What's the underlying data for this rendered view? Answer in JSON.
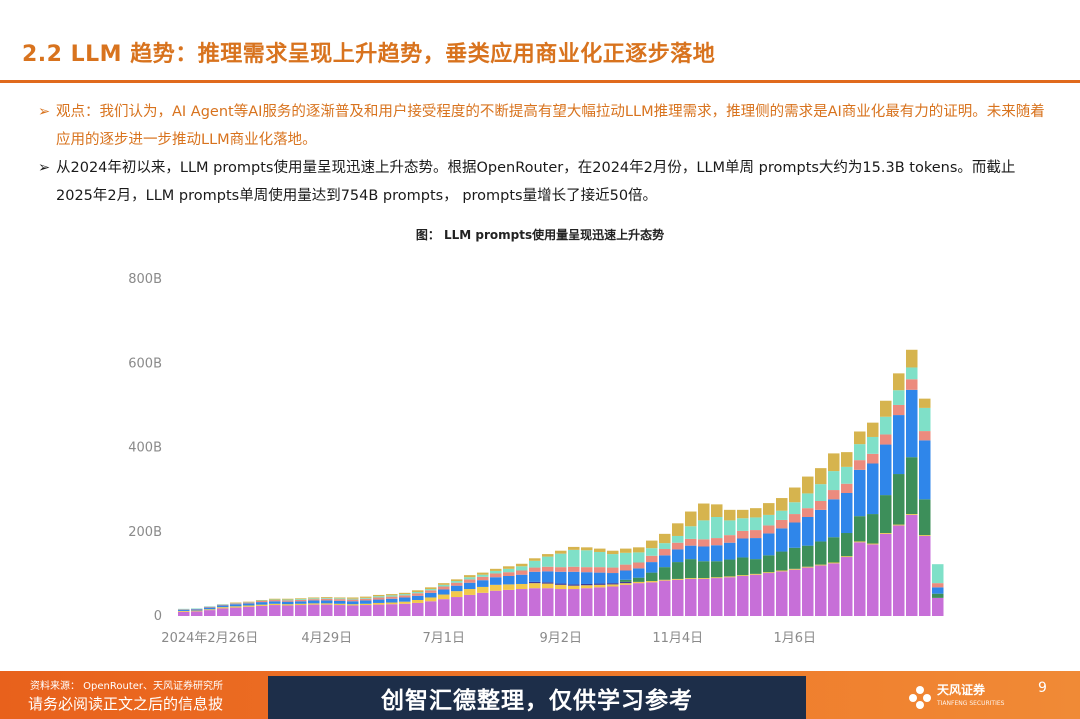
{
  "slide": {
    "title": "2.2 LLM 趋势：推理需求呈现上升趋势，垂类应用商业化正逐步落地",
    "bullets": [
      {
        "marker": "➢",
        "text": "观点：我们认为，AI Agent等AI服务的逐渐普及和用户接受程度的不断提高有望大幅拉动LLM推理需求，推理侧的需求是AI商业化最有力的证明。未来随着应用的逐步进一步推动LLM商业化落地。"
      },
      {
        "marker": "➢",
        "text": "从2024年初以来，LLM prompts使用量呈现迅速上升态势。根据OpenRouter，在2024年2月份，LLM单周 prompts大约为15.3B tokens。而截止2025年2月，LLM prompts单周使用量达到754B prompts， prompts量增长了接近50倍。"
      }
    ],
    "figure_caption": "图： LLM prompts使用量呈现迅速上升态势",
    "source": "资料来源： OpenRouter、天风证券研究所",
    "disclaimer": "请务必阅读正文之后的信息披",
    "watermark": "创智汇德整理，仅供学习参考",
    "logo_text": "天风证券",
    "logo_sub": "TIANFENG SECURITIES",
    "page_number": "9",
    "colors": {
      "accent": "#e06a1c",
      "title": "#d8731e",
      "watermark_bg": "#1d2e49"
    }
  },
  "chart_data": {
    "type": "bar",
    "stacked": true,
    "title": "",
    "xlabel": "",
    "ylabel": "",
    "ylim": [
      0,
      800
    ],
    "y_ticks": [
      "0",
      "200B",
      "400B",
      "600B",
      "800B"
    ],
    "y_tick_values": [
      0,
      200,
      400,
      600,
      800
    ],
    "x_tick_labels": [
      {
        "label": "2024年2月26日",
        "index": 2
      },
      {
        "label": "4月29日",
        "index": 11
      },
      {
        "label": "7月1日",
        "index": 20
      },
      {
        "label": "9月2日",
        "index": 29
      },
      {
        "label": "11月4日",
        "index": 38
      },
      {
        "label": "1月6日",
        "index": 47
      }
    ],
    "grid": false,
    "legend": "none",
    "series": [
      {
        "color": "#c76fd8",
        "values": [
          10,
          11,
          14,
          18,
          20,
          22,
          24,
          26,
          25,
          26,
          27,
          27,
          26,
          25,
          26,
          27,
          28,
          29,
          31,
          35,
          40,
          45,
          50,
          55,
          60,
          62,
          64,
          66,
          66,
          64,
          64,
          66,
          68,
          70,
          74,
          78,
          80,
          84,
          86,
          88,
          88,
          90,
          92,
          95,
          98,
          102,
          106,
          110,
          115,
          120,
          125,
          140,
          175,
          170,
          195,
          215,
          240,
          190,
          43
        ]
      },
      {
        "color": "#f2c94c",
        "values": [
          2,
          2,
          2,
          3,
          3,
          3,
          3,
          3,
          3,
          3,
          3,
          3,
          3,
          3,
          3,
          4,
          4,
          5,
          7,
          9,
          11,
          14,
          14,
          14,
          14,
          13,
          12,
          12,
          11,
          10,
          8,
          7,
          6,
          5,
          4,
          3,
          3,
          2,
          2,
          2,
          2,
          2,
          2,
          2,
          2,
          2,
          2,
          2,
          2,
          2,
          2,
          2,
          2,
          2,
          2,
          2,
          2,
          2,
          0
        ]
      },
      {
        "color": "#3d3a9a",
        "values": [
          0,
          0,
          0,
          0,
          0,
          0,
          0,
          0,
          0,
          0,
          0,
          0,
          0,
          0,
          0,
          0,
          0,
          0,
          0,
          0,
          0,
          0,
          0,
          0,
          0,
          0,
          0,
          3,
          3,
          3,
          3,
          3,
          3,
          3,
          3,
          0,
          0,
          0,
          0,
          0,
          0,
          0,
          0,
          0,
          0,
          0,
          0,
          0,
          0,
          0,
          0,
          0,
          0,
          0,
          0,
          0,
          0,
          0,
          0
        ]
      },
      {
        "color": "#3d8f5a",
        "values": [
          0,
          0,
          0,
          0,
          0,
          0,
          0,
          0,
          0,
          0,
          0,
          0,
          0,
          0,
          0,
          0,
          0,
          0,
          0,
          0,
          0,
          0,
          0,
          0,
          0,
          0,
          0,
          0,
          0,
          0,
          0,
          0,
          0,
          0,
          5,
          10,
          20,
          30,
          40,
          45,
          40,
          38,
          40,
          42,
          35,
          40,
          45,
          50,
          50,
          55,
          60,
          55,
          60,
          70,
          90,
          120,
          135,
          85,
          10
        ]
      },
      {
        "color": "#2f86ea",
        "values": [
          3,
          3,
          4,
          4,
          5,
          5,
          6,
          6,
          6,
          6,
          7,
          7,
          7,
          7,
          8,
          8,
          9,
          10,
          10,
          11,
          12,
          13,
          15,
          16,
          18,
          20,
          22,
          24,
          26,
          28,
          30,
          28,
          26,
          24,
          22,
          22,
          25,
          28,
          30,
          32,
          35,
          38,
          40,
          45,
          50,
          52,
          55,
          60,
          68,
          75,
          90,
          95,
          110,
          120,
          120,
          140,
          160,
          140,
          15
        ]
      },
      {
        "color": "#ec8b7e",
        "values": [
          1,
          1,
          2,
          2,
          2,
          2,
          3,
          3,
          3,
          3,
          3,
          4,
          4,
          4,
          4,
          5,
          5,
          5,
          6,
          6,
          7,
          7,
          8,
          8,
          9,
          9,
          10,
          10,
          11,
          11,
          12,
          12,
          13,
          13,
          14,
          14,
          15,
          15,
          16,
          16,
          17,
          17,
          18,
          18,
          19,
          19,
          20,
          20,
          21,
          21,
          22,
          22,
          23,
          23,
          24,
          24,
          25,
          22,
          10
        ]
      },
      {
        "color": "#7fe0c8",
        "values": [
          1,
          1,
          1,
          1,
          1,
          1,
          1,
          1,
          2,
          2,
          2,
          2,
          2,
          2,
          2,
          3,
          3,
          3,
          3,
          3,
          4,
          4,
          5,
          5,
          6,
          8,
          10,
          16,
          24,
          32,
          40,
          40,
          36,
          32,
          28,
          24,
          18,
          14,
          16,
          30,
          45,
          50,
          35,
          30,
          30,
          25,
          22,
          28,
          35,
          40,
          45,
          40,
          38,
          40,
          42,
          35,
          28,
          55,
          45
        ]
      },
      {
        "color": "#d6b44e",
        "values": [
          0,
          0,
          0,
          0,
          1,
          1,
          1,
          2,
          2,
          2,
          2,
          2,
          2,
          3,
          3,
          3,
          3,
          3,
          4,
          4,
          4,
          4,
          5,
          5,
          5,
          6,
          6,
          6,
          6,
          7,
          7,
          7,
          8,
          8,
          10,
          12,
          18,
          22,
          30,
          35,
          40,
          30,
          25,
          20,
          22,
          28,
          30,
          35,
          40,
          38,
          42,
          35,
          30,
          34,
          38,
          40,
          42,
          22,
          0
        ]
      }
    ]
  }
}
